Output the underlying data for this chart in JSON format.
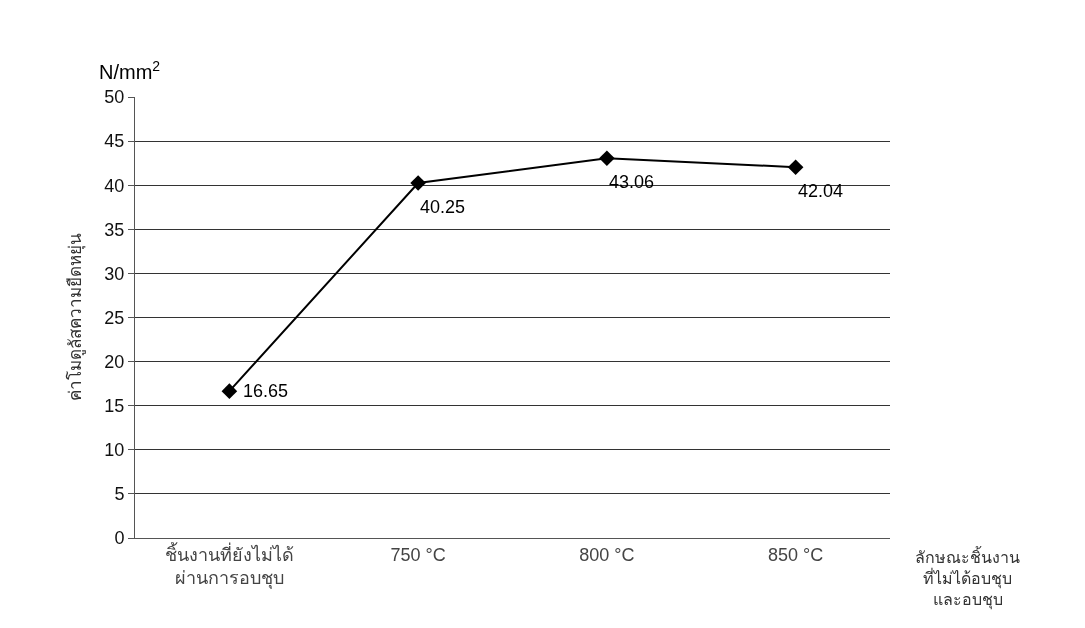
{
  "chart_data": {
    "type": "line",
    "ylabel": "ค่าโมดูลัสความยืดหยุ่น",
    "xlabel": "ลักษณะชิ้นงาน\nที่ไม่ได้อบชุบ\nและอบชุบ",
    "annotations": [
      "N/mm$^{2}$"
    ],
    "categories": [
      "ชิ้นงานที่ยังไม่ได้\nผ่านการอบชุบ",
      "750 °C",
      "800 °C",
      "850 °C"
    ],
    "values": [
      16.65,
      40.25,
      43.06,
      42.04
    ],
    "color": "#000000",
    "marker": "diamond",
    "line_style": "solid",
    "data_labels": true,
    "ylim": [
      0,
      50
    ],
    "yticks": [
      0,
      5,
      10,
      15,
      20,
      25,
      30,
      35,
      40,
      45,
      50
    ],
    "grid": "y",
    "legend": false
  }
}
